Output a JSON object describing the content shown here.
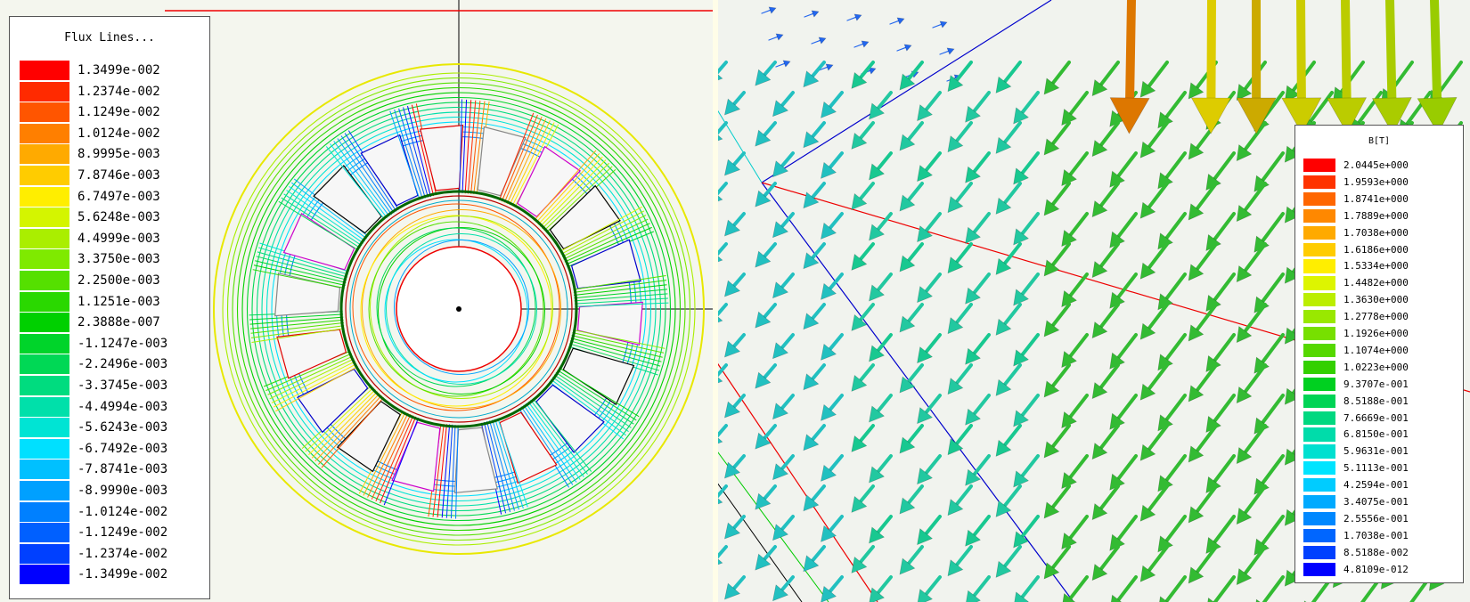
{
  "flux_legend": {
    "title": "Flux Lines...",
    "entries": [
      {
        "label": "1.3499e-002",
        "color": "#ff0000"
      },
      {
        "label": "1.2374e-002",
        "color": "#ff2a00"
      },
      {
        "label": "1.1249e-002",
        "color": "#ff5500"
      },
      {
        "label": "1.0124e-002",
        "color": "#ff7f00"
      },
      {
        "label": "8.9995e-003",
        "color": "#ffaa00"
      },
      {
        "label": "7.8746e-003",
        "color": "#ffcc00"
      },
      {
        "label": "6.7497e-003",
        "color": "#ffee00"
      },
      {
        "label": "5.6248e-003",
        "color": "#d4f500"
      },
      {
        "label": "4.4999e-003",
        "color": "#aaee00"
      },
      {
        "label": "3.3750e-003",
        "color": "#7fea00"
      },
      {
        "label": "2.2500e-003",
        "color": "#55e000"
      },
      {
        "label": "1.1251e-003",
        "color": "#2ad800"
      },
      {
        "label": "2.3888e-007",
        "color": "#00d000"
      },
      {
        "label": "-1.1247e-003",
        "color": "#00d42a"
      },
      {
        "label": "-2.2496e-003",
        "color": "#00d855"
      },
      {
        "label": "-3.3745e-003",
        "color": "#00dc7f"
      },
      {
        "label": "-4.4994e-003",
        "color": "#00e0aa"
      },
      {
        "label": "-5.6243e-003",
        "color": "#00e4d4"
      },
      {
        "label": "-6.7492e-003",
        "color": "#00e0ff"
      },
      {
        "label": "-7.8741e-003",
        "color": "#00c0ff"
      },
      {
        "label": "-8.9990e-003",
        "color": "#00a0ff"
      },
      {
        "label": "-1.0124e-002",
        "color": "#0080ff"
      },
      {
        "label": "-1.1249e-002",
        "color": "#0060ff"
      },
      {
        "label": "-1.2374e-002",
        "color": "#0040ff"
      },
      {
        "label": "-1.3499e-002",
        "color": "#0000ff"
      }
    ]
  },
  "b_legend": {
    "title": "B[T]",
    "entries": [
      {
        "label": "2.0445e+000",
        "color": "#ff0000"
      },
      {
        "label": "1.9593e+000",
        "color": "#ff3300"
      },
      {
        "label": "1.8741e+000",
        "color": "#ff6600"
      },
      {
        "label": "1.7889e+000",
        "color": "#ff8800"
      },
      {
        "label": "1.7038e+000",
        "color": "#ffaa00"
      },
      {
        "label": "1.6186e+000",
        "color": "#ffcc00"
      },
      {
        "label": "1.5334e+000",
        "color": "#ffee00"
      },
      {
        "label": "1.4482e+000",
        "color": "#ddf500"
      },
      {
        "label": "1.3630e+000",
        "color": "#bbee00"
      },
      {
        "label": "1.2778e+000",
        "color": "#99e800"
      },
      {
        "label": "1.1926e+000",
        "color": "#77e000"
      },
      {
        "label": "1.1074e+000",
        "color": "#55d800"
      },
      {
        "label": "1.0223e+000",
        "color": "#33d000"
      },
      {
        "label": "9.3707e-001",
        "color": "#00d020"
      },
      {
        "label": "8.5188e-001",
        "color": "#00d455"
      },
      {
        "label": "7.6669e-001",
        "color": "#00d880"
      },
      {
        "label": "6.8150e-001",
        "color": "#00dcaa"
      },
      {
        "label": "5.9631e-001",
        "color": "#00e0d0"
      },
      {
        "label": "5.1113e-001",
        "color": "#00e4ff"
      },
      {
        "label": "4.2594e-001",
        "color": "#00ccff"
      },
      {
        "label": "3.4075e-001",
        "color": "#00aaff"
      },
      {
        "label": "2.5556e-001",
        "color": "#0088ff"
      },
      {
        "label": "1.7038e-001",
        "color": "#0066ff"
      },
      {
        "label": "8.5188e-002",
        "color": "#0040ff"
      },
      {
        "label": "4.8109e-012",
        "color": "#0000ff"
      }
    ]
  }
}
